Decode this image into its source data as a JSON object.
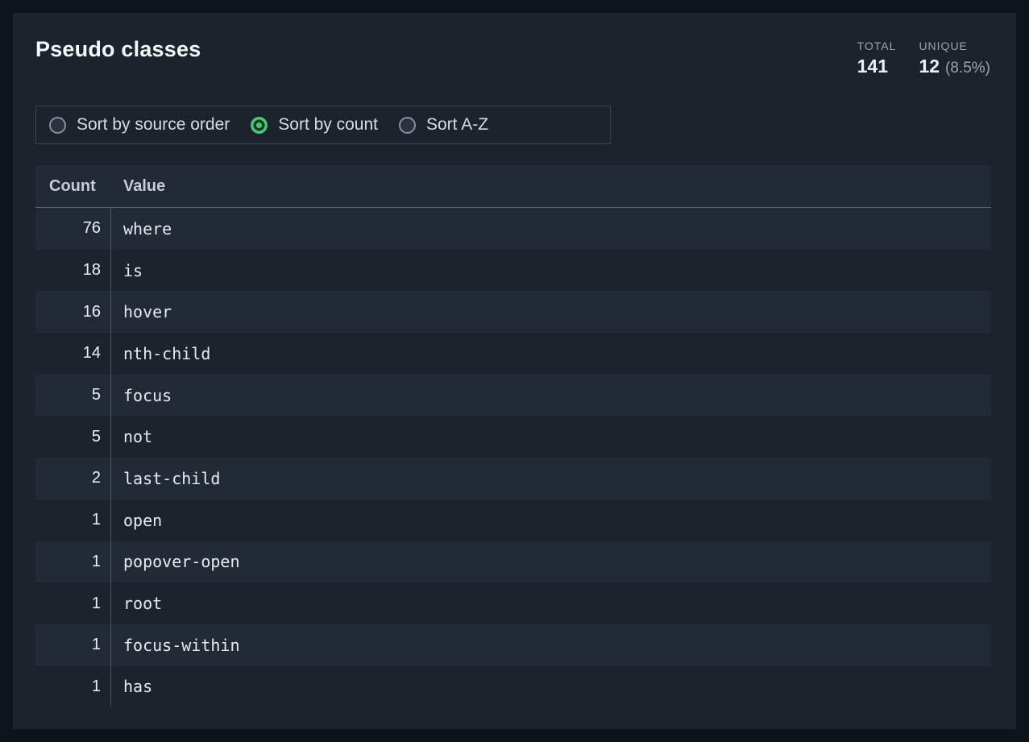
{
  "panel": {
    "title": "Pseudo classes"
  },
  "stats": {
    "total": {
      "label": "TOTAL",
      "value": "141"
    },
    "unique": {
      "label": "UNIQUE",
      "value": "12",
      "percent": "(8.5%)"
    }
  },
  "sort": {
    "selected_index": 1,
    "options": [
      {
        "label": "Sort by source order"
      },
      {
        "label": "Sort by count"
      },
      {
        "label": "Sort A-Z"
      }
    ]
  },
  "table": {
    "columns": {
      "count": "Count",
      "value": "Value"
    },
    "rows": [
      {
        "count": "76",
        "value": "where"
      },
      {
        "count": "18",
        "value": "is"
      },
      {
        "count": "16",
        "value": "hover"
      },
      {
        "count": "14",
        "value": "nth-child"
      },
      {
        "count": "5",
        "value": "focus"
      },
      {
        "count": "5",
        "value": "not"
      },
      {
        "count": "2",
        "value": "last-child"
      },
      {
        "count": "1",
        "value": "open"
      },
      {
        "count": "1",
        "value": "popover-open"
      },
      {
        "count": "1",
        "value": "root"
      },
      {
        "count": "1",
        "value": "focus-within"
      },
      {
        "count": "1",
        "value": "has"
      }
    ]
  },
  "colors": {
    "page_bg": "#0f141c",
    "card_bg": "#1c232d",
    "stripe_bg": "#222a35",
    "accent_green": "#4bc672",
    "muted_text": "#9aa3ae"
  }
}
